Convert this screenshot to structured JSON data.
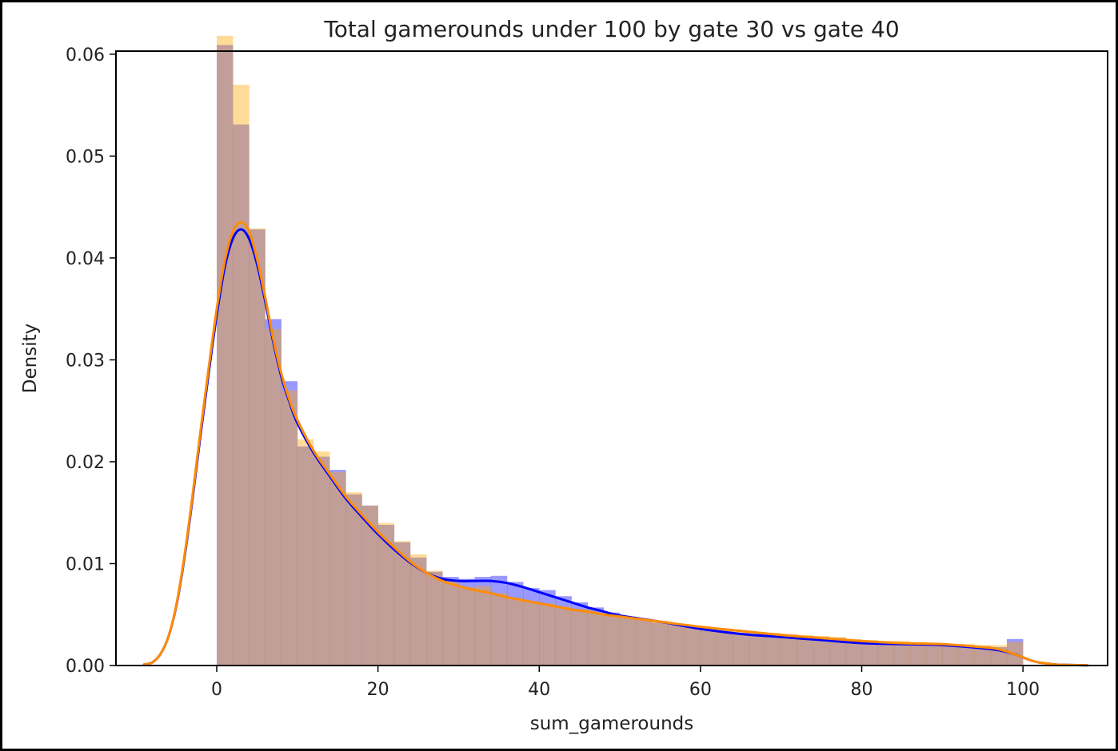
{
  "chart_data": {
    "type": "histogram",
    "title": "Total gamerounds under 100 by gate 30 vs gate 40",
    "xlabel": "sum_gamerounds",
    "ylabel": "Density",
    "xlim": [
      -12.5,
      110.5
    ],
    "ylim": [
      0,
      0.0603
    ],
    "xticks": [
      0,
      20,
      40,
      60,
      80,
      100
    ],
    "xtick_labels": [
      "0",
      "20",
      "40",
      "60",
      "80",
      "100"
    ],
    "yticks": [
      0.0,
      0.01,
      0.02,
      0.03,
      0.04,
      0.05,
      0.06
    ],
    "ytick_labels": [
      "0.00",
      "0.01",
      "0.02",
      "0.03",
      "0.04",
      "0.05",
      "0.06"
    ],
    "grid": false,
    "bin_edges": [
      0,
      2,
      4,
      6,
      8,
      10,
      12,
      14,
      16,
      18,
      20,
      22,
      24,
      26,
      28,
      30,
      32,
      34,
      36,
      38,
      40,
      42,
      44,
      46,
      48,
      50,
      52,
      54,
      56,
      58,
      60,
      62,
      64,
      66,
      68,
      70,
      72,
      74,
      76,
      78,
      80,
      82,
      84,
      86,
      88,
      90,
      92,
      94,
      96,
      98,
      100
    ],
    "series": [
      {
        "color": "#0000ff",
        "hist_alpha": 0.4,
        "hist": [
          0.0609,
          0.0531,
          0.0428,
          0.034,
          0.0279,
          0.0215,
          0.0205,
          0.0192,
          0.0168,
          0.0157,
          0.0138,
          0.0121,
          0.0106,
          0.0092,
          0.0087,
          0.0085,
          0.0087,
          0.0088,
          0.0082,
          0.0076,
          0.0074,
          0.0068,
          0.0062,
          0.0057,
          0.0052,
          0.0048,
          0.0045,
          0.0042,
          0.004,
          0.0038,
          0.0036,
          0.0034,
          0.0032,
          0.0031,
          0.0031,
          0.003,
          0.0029,
          0.0028,
          0.0027,
          0.0025,
          0.0024,
          0.0023,
          0.0022,
          0.0021,
          0.0021,
          0.002,
          0.002,
          0.0019,
          0.0018,
          0.0026
        ],
        "kde_x": [
          -9,
          -8,
          -7,
          -6,
          -5,
          -4,
          -3,
          -2,
          -1,
          0,
          1,
          2,
          3,
          4,
          5,
          6,
          7,
          8,
          9,
          10,
          12,
          14,
          16,
          18,
          20,
          22,
          24,
          26,
          28,
          30,
          32,
          34,
          36,
          38,
          40,
          42,
          44,
          46,
          48,
          50,
          55,
          60,
          65,
          70,
          75,
          80,
          85,
          90,
          95,
          97,
          99,
          100,
          101,
          102,
          103,
          104,
          106,
          108
        ],
        "kde_y": [
          0.0001,
          0.0003,
          0.0011,
          0.0028,
          0.0059,
          0.0106,
          0.0164,
          0.0227,
          0.0287,
          0.0344,
          0.0391,
          0.0419,
          0.0428,
          0.0419,
          0.0394,
          0.0358,
          0.0318,
          0.0284,
          0.0259,
          0.0238,
          0.0209,
          0.0186,
          0.0164,
          0.0146,
          0.0129,
          0.0114,
          0.0101,
          0.0091,
          0.0085,
          0.0083,
          0.0083,
          0.0083,
          0.0081,
          0.0077,
          0.0072,
          0.0067,
          0.0062,
          0.0057,
          0.0053,
          0.0049,
          0.0043,
          0.0036,
          0.0031,
          0.0028,
          0.0025,
          0.0022,
          0.0021,
          0.002,
          0.0017,
          0.0015,
          0.0011,
          0.0008,
          0.0005,
          0.0003,
          0.0002,
          0.0001,
          5e-05,
          2e-05
        ]
      },
      {
        "color": "#ffa500",
        "kde_color": "#ff8c00",
        "hist_alpha": 0.4,
        "hist": [
          0.0618,
          0.057,
          0.0429,
          0.033,
          0.027,
          0.0222,
          0.021,
          0.019,
          0.017,
          0.0157,
          0.014,
          0.0122,
          0.0109,
          0.0093,
          0.0083,
          0.0077,
          0.0078,
          0.0071,
          0.0066,
          0.0063,
          0.0061,
          0.0058,
          0.0055,
          0.0052,
          0.005,
          0.0048,
          0.0046,
          0.0044,
          0.0041,
          0.0039,
          0.0037,
          0.0035,
          0.0034,
          0.0033,
          0.0032,
          0.0031,
          0.003,
          0.0029,
          0.0028,
          0.0026,
          0.0025,
          0.0024,
          0.0024,
          0.0023,
          0.0022,
          0.0021,
          0.0021,
          0.002,
          0.002,
          0.0023
        ],
        "kde_x": [
          -9,
          -8,
          -7,
          -6,
          -5,
          -4,
          -3,
          -2,
          -1,
          0,
          1,
          2,
          3,
          4,
          5,
          6,
          7,
          8,
          9,
          10,
          12,
          14,
          16,
          18,
          20,
          22,
          24,
          26,
          28,
          30,
          32,
          34,
          36,
          38,
          40,
          42,
          44,
          46,
          48,
          50,
          55,
          60,
          65,
          70,
          75,
          80,
          85,
          90,
          95,
          97,
          99,
          100,
          101,
          102,
          103,
          104,
          106,
          108
        ],
        "kde_y": [
          0.0001,
          0.0003,
          0.0011,
          0.0028,
          0.006,
          0.0108,
          0.0167,
          0.0231,
          0.0292,
          0.035,
          0.0397,
          0.0426,
          0.0435,
          0.0426,
          0.0399,
          0.0362,
          0.0321,
          0.0287,
          0.0261,
          0.0241,
          0.0211,
          0.0188,
          0.0166,
          0.0148,
          0.0131,
          0.0116,
          0.0102,
          0.0091,
          0.0083,
          0.0078,
          0.0074,
          0.0071,
          0.0067,
          0.0064,
          0.0061,
          0.0058,
          0.0055,
          0.0053,
          0.005,
          0.0048,
          0.0043,
          0.0038,
          0.0034,
          0.003,
          0.0027,
          0.0024,
          0.0022,
          0.0021,
          0.0018,
          0.0016,
          0.0011,
          0.0008,
          0.0005,
          0.0003,
          0.0002,
          0.0001,
          5e-05,
          2e-05
        ]
      }
    ]
  }
}
